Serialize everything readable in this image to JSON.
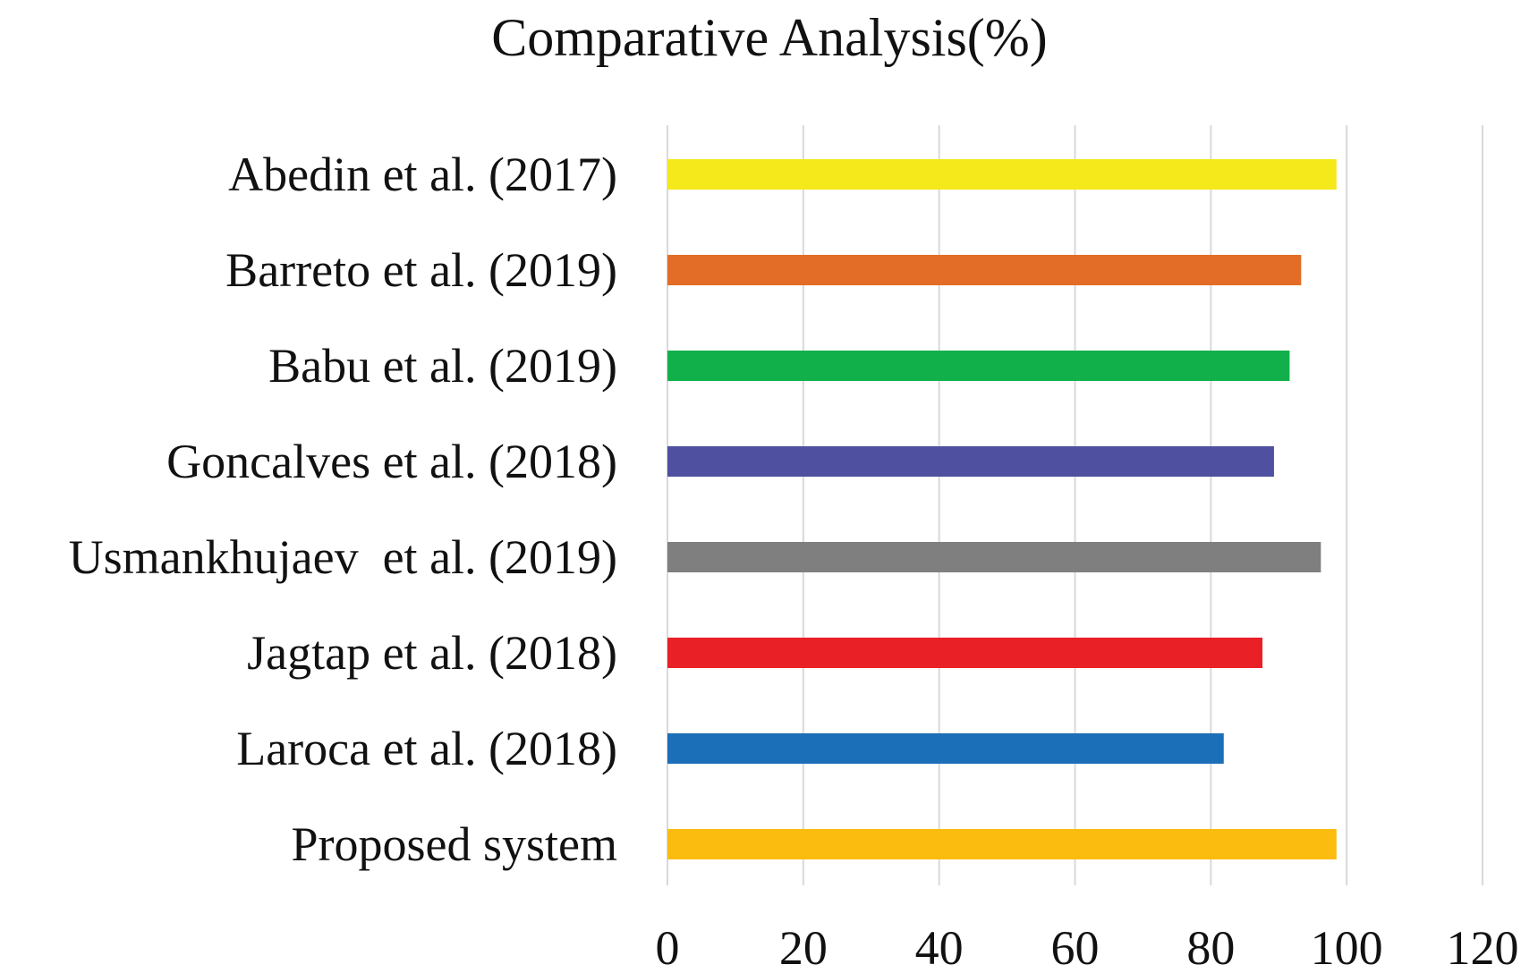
{
  "chart_data": {
    "type": "bar",
    "orientation": "horizontal",
    "title": "Comparative Analysis(%)",
    "xlabel": "",
    "ylabel": "",
    "xlim": [
      0,
      120
    ],
    "ticks": [
      0,
      20,
      40,
      60,
      80,
      100,
      120
    ],
    "tick_labels": [
      "0",
      "20",
      "40",
      "60",
      "80",
      "100",
      "120"
    ],
    "grid": true,
    "legend": "none",
    "categories": [
      "Abedin et al. (2017)",
      "Barreto et al. (2019)",
      "Babu et al. (2019)",
      "Goncalves et al. (2018)",
      "Usmankhujaev  et al. (2019)",
      "Jagtap et al. (2018)",
      "Laroca et al. (2018)",
      "Proposed system"
    ],
    "values": [
      98.5,
      93.3,
      91.6,
      89.3,
      96.2,
      87.6,
      81.9,
      98.5
    ],
    "colors": [
      "#f5e91c",
      "#e36c27",
      "#12b04b",
      "#5050a0",
      "#7f7f7f",
      "#ea2027",
      "#1b6fb8",
      "#fbbc0f"
    ]
  }
}
